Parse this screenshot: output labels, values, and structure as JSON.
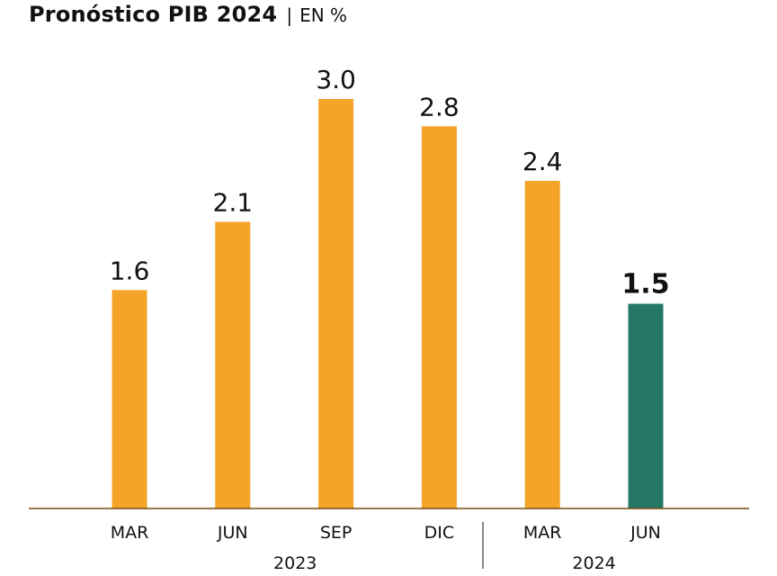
{
  "title": "Pronóstico PIB 2024",
  "subtitle": "EN %",
  "colors": {
    "bar": "#F5A42A",
    "highlight": "#267866",
    "axis": "#7a4a10",
    "text": "#111111"
  },
  "chart_data": {
    "type": "bar",
    "title": "Pronóstico PIB 2024",
    "subtitle": "EN %",
    "categories": [
      "MAR",
      "JUN",
      "SEP",
      "DIC",
      "MAR",
      "JUN"
    ],
    "values": [
      1.6,
      2.1,
      3.0,
      2.8,
      2.4,
      1.5
    ],
    "value_labels": [
      "1.6",
      "2.1",
      "3.0",
      "2.8",
      "2.4",
      "1.5"
    ],
    "highlight_index": 5,
    "groups": [
      {
        "label": "2023",
        "start": 0,
        "end": 3
      },
      {
        "label": "2024",
        "start": 4,
        "end": 5
      }
    ],
    "xlabel": "",
    "ylabel": "",
    "ylim": [
      0,
      3.5
    ],
    "grid": false,
    "legend": "none"
  }
}
